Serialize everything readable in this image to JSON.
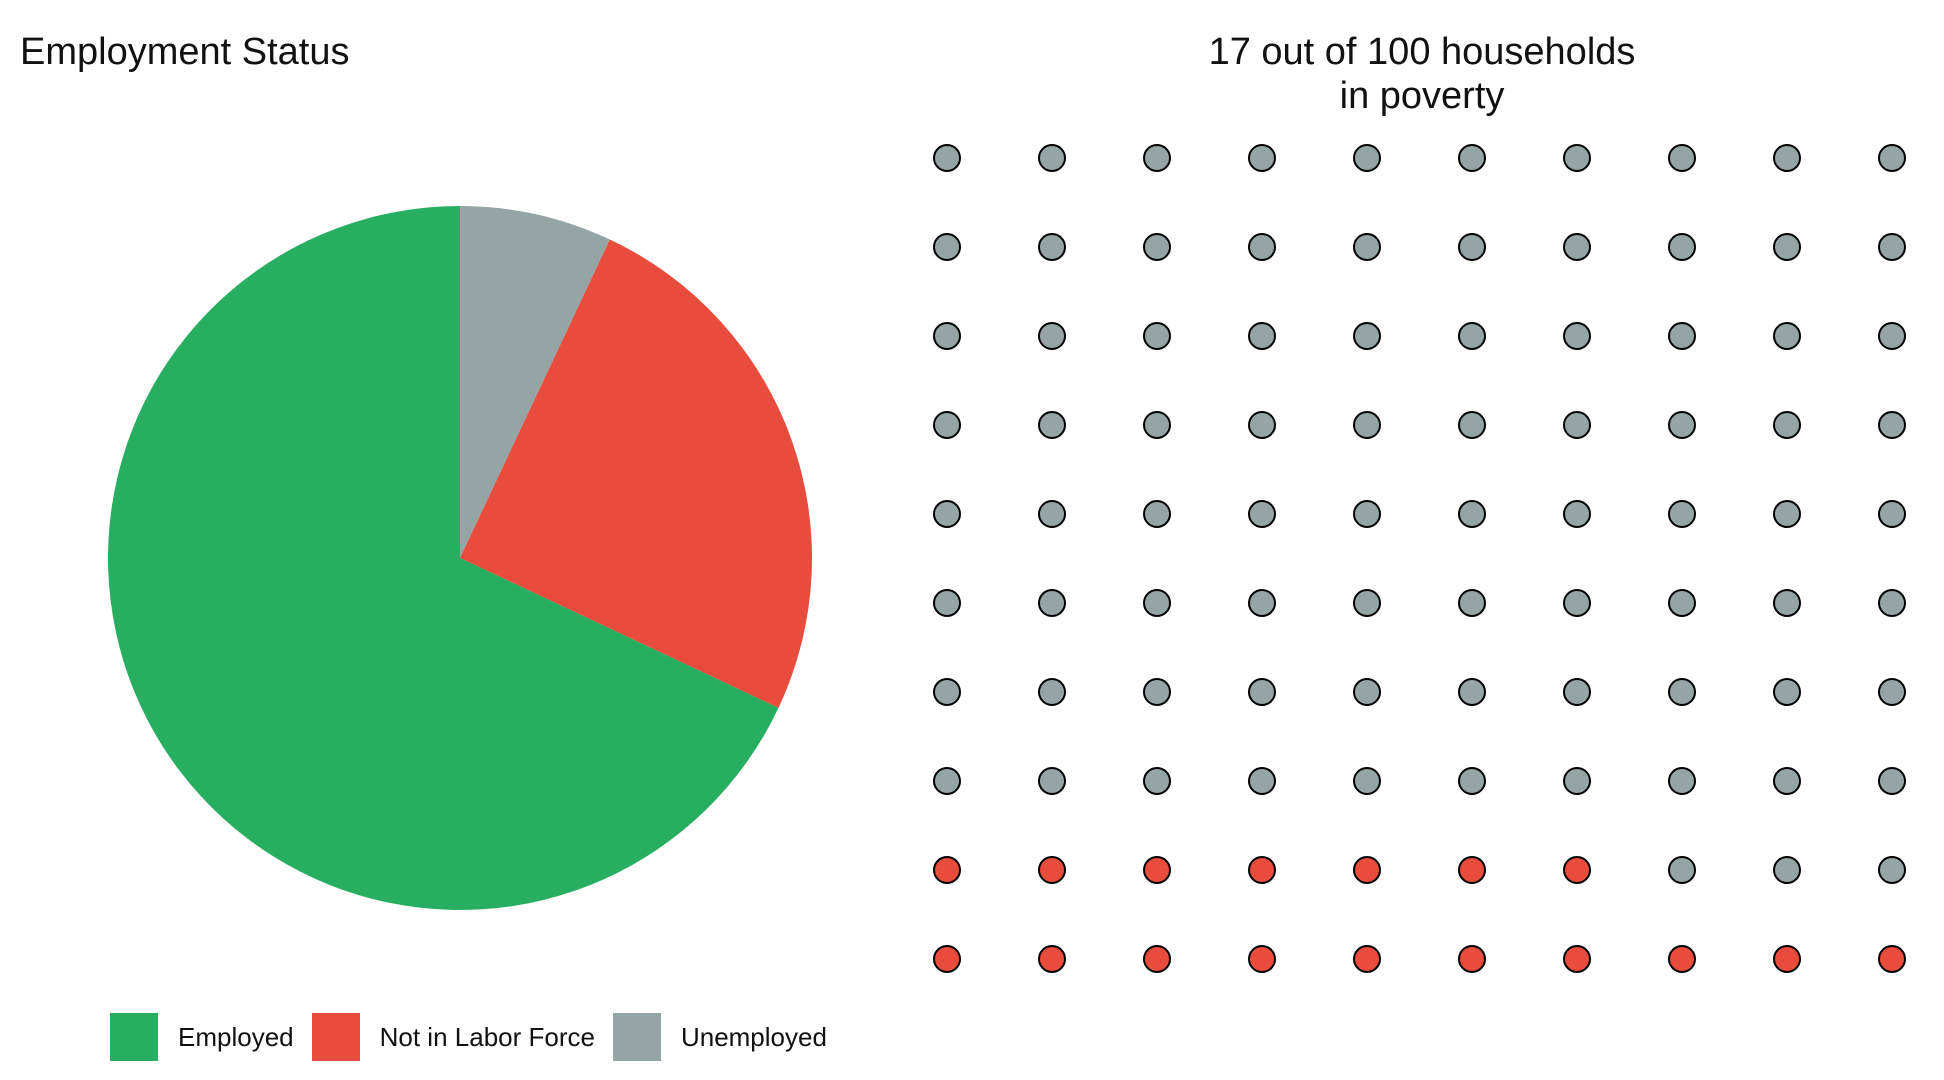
{
  "chart_data": [
    {
      "type": "pie",
      "title": "Employment Status",
      "series": [
        {
          "name": "Employed",
          "value": 68,
          "color": "#28ae60"
        },
        {
          "name": "Not in Labor Force",
          "value": 25,
          "color": "#e74c3c"
        },
        {
          "name": "Unemployed",
          "value": 7,
          "color": "#95a5a5"
        }
      ],
      "legend": "bottom"
    },
    {
      "type": "waffle",
      "title": "17 out of 100 households\nin poverty",
      "rows": 10,
      "cols": 10,
      "total": 100,
      "highlighted": 17,
      "colors": {
        "highlighted": "#e74c3c",
        "other": "#95a5a5",
        "outline": "#000000"
      }
    }
  ]
}
